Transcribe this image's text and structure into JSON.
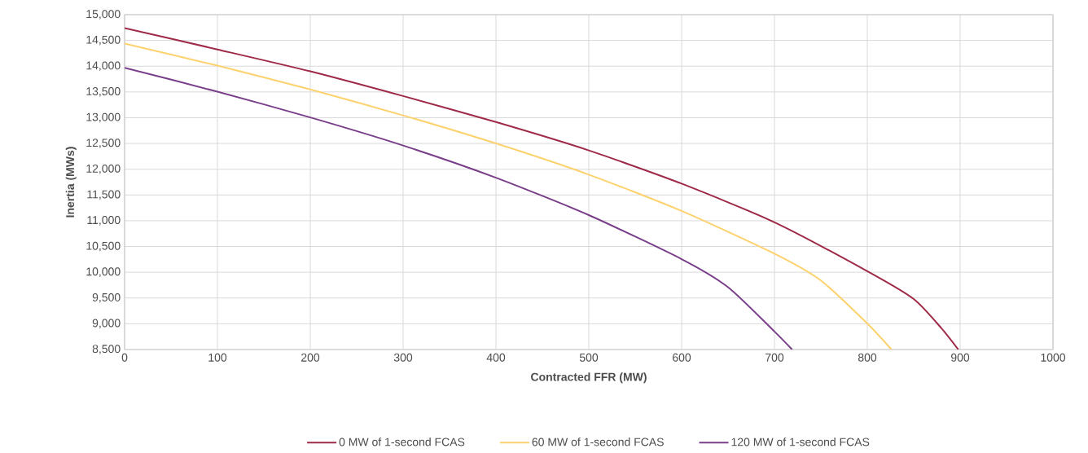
{
  "chart_data": {
    "type": "line",
    "xlabel": "Contracted FFR (MW)",
    "ylabel": "Inertia (MWs)",
    "xlim": [
      0,
      1000
    ],
    "xticks": [
      0,
      100,
      200,
      300,
      400,
      500,
      600,
      700,
      800,
      900,
      1000
    ],
    "ylim": [
      8500,
      15000
    ],
    "yticks": [
      {
        "value": 8500,
        "label": "8,500"
      },
      {
        "value": 9000,
        "label": "9,000"
      },
      {
        "value": 9500,
        "label": "9,500"
      },
      {
        "value": 10000,
        "label": "10,000"
      },
      {
        "value": 10500,
        "label": "10,500"
      },
      {
        "value": 11000,
        "label": "11,000"
      },
      {
        "value": 11500,
        "label": "11,500"
      },
      {
        "value": 12000,
        "label": "12,000"
      },
      {
        "value": 12500,
        "label": "12,500"
      },
      {
        "value": 13000,
        "label": "13,000"
      },
      {
        "value": 13500,
        "label": "13,500"
      },
      {
        "value": 14000,
        "label": "14,000"
      },
      {
        "value": 14500,
        "label": "14,500"
      },
      {
        "value": 15000,
        "label": "15,000"
      }
    ],
    "grid": true,
    "legend": "bottom",
    "series": [
      {
        "name": "0 MW of 1-second FCAS",
        "color": "#9e2a47",
        "x": [
          0,
          100,
          200,
          300,
          400,
          500,
          600,
          700,
          800,
          850,
          880,
          898
        ],
        "values": [
          14740,
          14325,
          13900,
          13420,
          12915,
          12365,
          11720,
          10970,
          10020,
          9480,
          8910,
          8500
        ]
      },
      {
        "name": "60 MW of 1-second FCAS",
        "color": "#fdd26e",
        "x": [
          0,
          100,
          200,
          300,
          400,
          500,
          600,
          700,
          750,
          800,
          826
        ],
        "values": [
          14440,
          14010,
          13550,
          13045,
          12500,
          11895,
          11190,
          10360,
          9840,
          9005,
          8500
        ]
      },
      {
        "name": "120 MW of 1-second FCAS",
        "color": "#7a3f8a",
        "x": [
          0,
          100,
          200,
          300,
          400,
          500,
          600,
          650,
          700,
          719
        ],
        "values": [
          13970,
          13505,
          13005,
          12460,
          11835,
          11110,
          10255,
          9710,
          8850,
          8500
        ]
      }
    ]
  }
}
